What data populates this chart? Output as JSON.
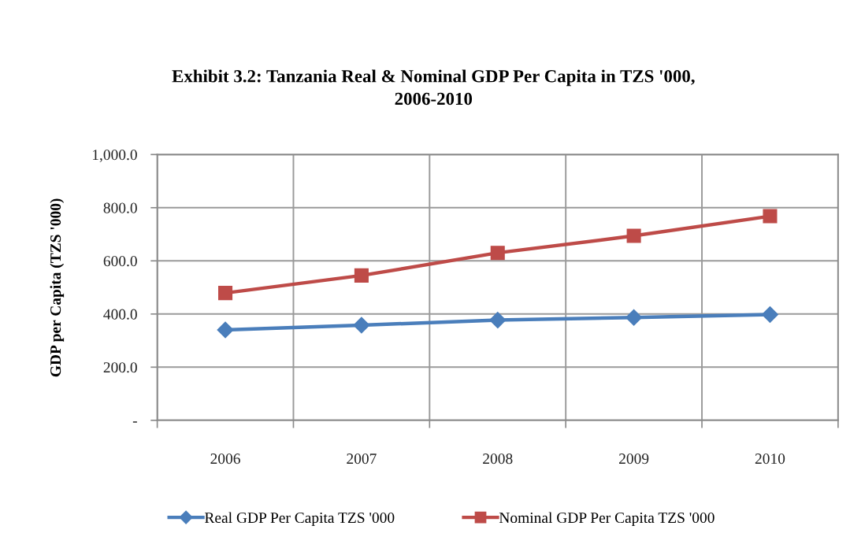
{
  "chart_data": {
    "type": "line",
    "title": "Exhibit 3.2: Tanzania Real & Nominal GDP Per Capita in TZS '000,\n2006-2010",
    "ylabel": "GDP per Capita (TZS '000)",
    "categories": [
      "2006",
      "2007",
      "2008",
      "2009",
      "2010"
    ],
    "series": [
      {
        "name": "Real GDP Per Capita TZS '000",
        "color": "#4a7ebb",
        "marker": "diamond",
        "values": [
          340,
          358,
          377,
          387,
          398
        ]
      },
      {
        "name": "Nominal GDP Per Capita TZS '000",
        "color": "#be4b48",
        "marker": "square",
        "values": [
          479,
          545,
          630,
          694,
          768
        ]
      }
    ],
    "ylim": [
      0,
      1000
    ],
    "yticks": [
      {
        "value": 0,
        "label": "-"
      },
      {
        "value": 200,
        "label": "200.0"
      },
      {
        "value": 400,
        "label": "400.0"
      },
      {
        "value": 600,
        "label": "600.0"
      },
      {
        "value": 800,
        "label": "800.0"
      },
      {
        "value": 1000,
        "label": "1,000.0"
      }
    ],
    "grid": true,
    "legend": "bottom",
    "line_style": "solid"
  }
}
